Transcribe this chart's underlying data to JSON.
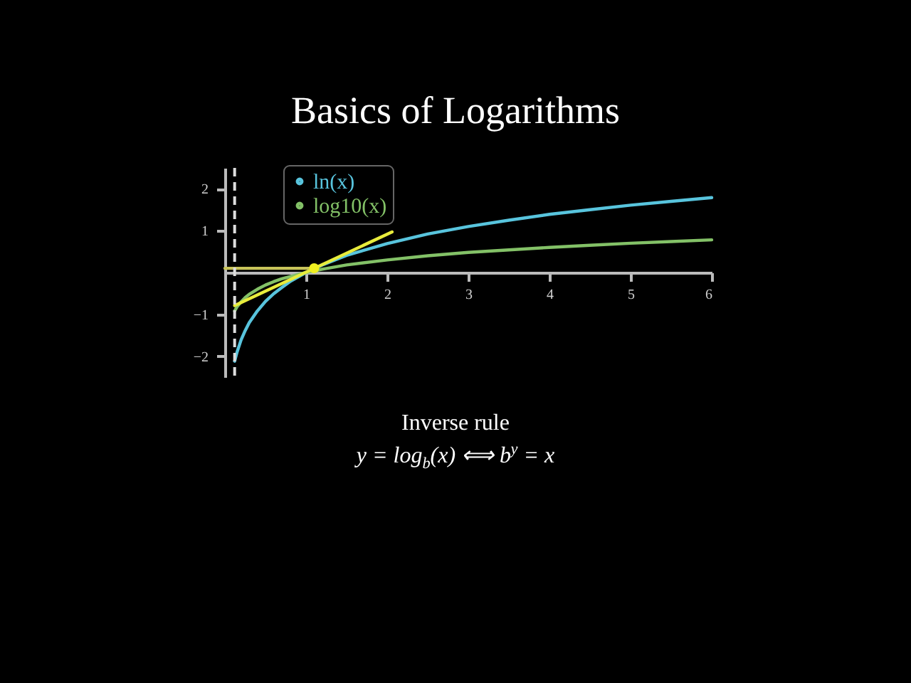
{
  "chart_data": {
    "type": "line",
    "title": "Basics of Logarithms",
    "xlim": [
      0,
      6
    ],
    "xticks": [
      1,
      2,
      3,
      4,
      5,
      6
    ],
    "ylim": [
      -2.5,
      2.5
    ],
    "yticks": [
      -2,
      -1,
      1,
      2
    ],
    "grid": false,
    "legend": "top left",
    "marker": "none",
    "line_style": "solid",
    "series": [
      {
        "name": "ln(x)",
        "color": "#58c4dd",
        "x": [
          0.12,
          0.15,
          0.2,
          0.25,
          0.3,
          0.4,
          0.5,
          0.6,
          0.7,
          0.8,
          1,
          1.2,
          1.5,
          2,
          2.5,
          3,
          3.5,
          4,
          4.5,
          5,
          5.5,
          6
        ],
        "values": [
          -2.12,
          -1.9,
          -1.61,
          -1.39,
          -1.2,
          -0.92,
          -0.69,
          -0.51,
          -0.36,
          -0.22,
          0,
          0.18,
          0.41,
          0.69,
          0.92,
          1.1,
          1.25,
          1.39,
          1.5,
          1.61,
          1.7,
          1.79
        ]
      },
      {
        "name": "log10(x)",
        "color": "#83c167",
        "x": [
          0.12,
          0.15,
          0.2,
          0.25,
          0.3,
          0.4,
          0.5,
          0.6,
          0.7,
          0.8,
          1,
          1.2,
          1.5,
          2,
          2.5,
          3,
          3.5,
          4,
          4.5,
          5,
          5.5,
          6
        ],
        "values": [
          -0.92,
          -0.82,
          -0.7,
          -0.6,
          -0.52,
          -0.4,
          -0.3,
          -0.22,
          -0.15,
          -0.1,
          0,
          0.08,
          0.18,
          0.3,
          0.4,
          0.48,
          0.54,
          0.6,
          0.65,
          0.7,
          0.74,
          0.78
        ]
      },
      {
        "type": "line",
        "color": "#e8ec3c",
        "x": [
          0.12,
          2.06
        ],
        "values": [
          -0.79,
          0.97
        ]
      },
      {
        "type": "line",
        "color": "#c8c45a",
        "x": [
          0,
          1.1
        ],
        "values": [
          0.1,
          0.1
        ]
      },
      {
        "type": "scatter",
        "color": "#f0f020",
        "marker": "circle",
        "x": [
          1.1
        ],
        "values": [
          0.1
        ]
      }
    ],
    "ref_lines": [
      {
        "axis": "x",
        "value": 0.12,
        "color": "#dddddd",
        "line_style": "dashed"
      }
    ],
    "annotations": [
      "Inverse rule",
      "y = log$_{b}$(x) ⟺ b$^{y}$ = x"
    ]
  }
}
